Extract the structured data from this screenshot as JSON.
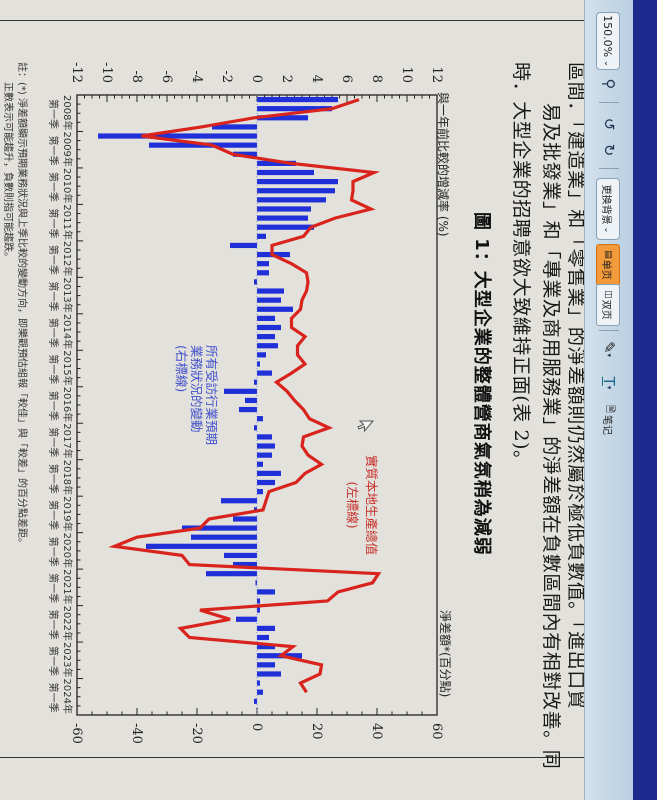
{
  "toolbar": {
    "zoom_value": "150.0%",
    "background_label": "更换背景",
    "single_page_label": "单页",
    "double_page_label": "双页",
    "notes_label": "笔记",
    "icons": [
      "zoom-in-icon",
      "rotate-left-icon",
      "rotate-right-icon",
      "pen-icon",
      "text-tool-icon",
      "notes-icon"
    ]
  },
  "document": {
    "paragraph_lines": [
      "區間．「建造業」和「零售業」的淨差額則仍然屬於極低負數值。「進出口貿",
      "易及批發業」和「專業及商用服務業」的淨差額在負數區間內有相對改善。同",
      "時．大型企業的招聘意欲大致維持正面(表 2)。"
    ],
    "figure_title": "圖 1：大型企業的整體營商氣氛稍為減弱",
    "notes": [
      "註：(*)   淨差額顯示預期業務狀況與上季比較的變動方向，即樂觀預估組報「較佳」與「較差」的百分點差距。",
      "正數表示可能趨升，負數則指可能趨跌。"
    ]
  },
  "chart_data": {
    "type": "bar+line",
    "ylabel_left": "與一年前比較的增減率 (%)",
    "ylabel_right": "淨差額*(百分點)",
    "ylim_left": [
      -12,
      12
    ],
    "ylim_right": [
      -60,
      60
    ],
    "yticks_left": [
      "12",
      "10",
      "8",
      "6",
      "4",
      "2",
      "0",
      "-2",
      "-4",
      "-6",
      "-8",
      "-10",
      "-12"
    ],
    "yticks_right": [
      "60",
      "40",
      "20",
      "0",
      "-20",
      "-40",
      "-60"
    ],
    "x_year_labels": [
      "2008年",
      "2009年",
      "2010年",
      "2011年",
      "2012年",
      "2013年",
      "2014年",
      "2015年",
      "2016年",
      "2017年",
      "2018年",
      "2019年",
      "2020年",
      "2021年",
      "2022年",
      "2023年",
      "2024年"
    ],
    "x_quarter_label": "第一季",
    "x_start": "2008 Q1",
    "grid": false,
    "series": [
      {
        "name": "所有受訪行業預期業務狀況的變動",
        "axis_note": "(右標線)",
        "type": "bar",
        "axis": "right",
        "color": "#1f30d8",
        "values": [
          27,
          25,
          17,
          -15,
          -53,
          -36,
          -8,
          13,
          19,
          27,
          26,
          23,
          18,
          17,
          19,
          3,
          -9,
          11,
          4,
          4,
          -1,
          9,
          8,
          12,
          6,
          8,
          6,
          7,
          3,
          1,
          5,
          -1,
          -11,
          -4,
          -6,
          2,
          -1,
          5,
          6,
          5,
          2,
          8,
          6,
          2,
          -12,
          -1,
          -8,
          -25,
          -22,
          -37,
          -11,
          -8,
          -17,
          0,
          6,
          1,
          1,
          -7,
          6,
          4,
          6,
          15,
          6,
          8,
          1,
          2,
          -1
        ]
      },
      {
        "name": "實質本地生產總值",
        "axis_note": "(左標線)",
        "type": "line",
        "axis": "left",
        "color": "#d8241c",
        "values": [
          6.8,
          5.0,
          -0.2,
          -3.7,
          -7.7,
          -3.0,
          -1.6,
          2.3,
          7.8,
          6.4,
          6.4,
          6.3,
          7.6,
          5.2,
          3.6,
          3.1,
          1.0,
          1.0,
          2.3,
          3.3,
          3.4,
          3.3,
          3.0,
          2.9,
          2.3,
          2.3,
          3.2,
          2.7,
          2.7,
          3.2,
          2.3,
          1.3,
          2.0,
          2.5,
          3.1,
          3.5,
          4.8,
          3.1,
          3.0,
          3.4,
          4.3,
          3.2,
          2.6,
          0.8,
          0.6,
          0.4,
          -3.2,
          -3.8,
          -8.0,
          -9.5,
          -5.0,
          -4.5,
          8.1,
          7.7,
          5.4,
          4.7,
          -3.8,
          -1.8,
          -5.1,
          -4.5,
          2.4,
          1.6,
          4.3,
          4.2,
          2.9,
          3.3
        ]
      }
    ]
  }
}
